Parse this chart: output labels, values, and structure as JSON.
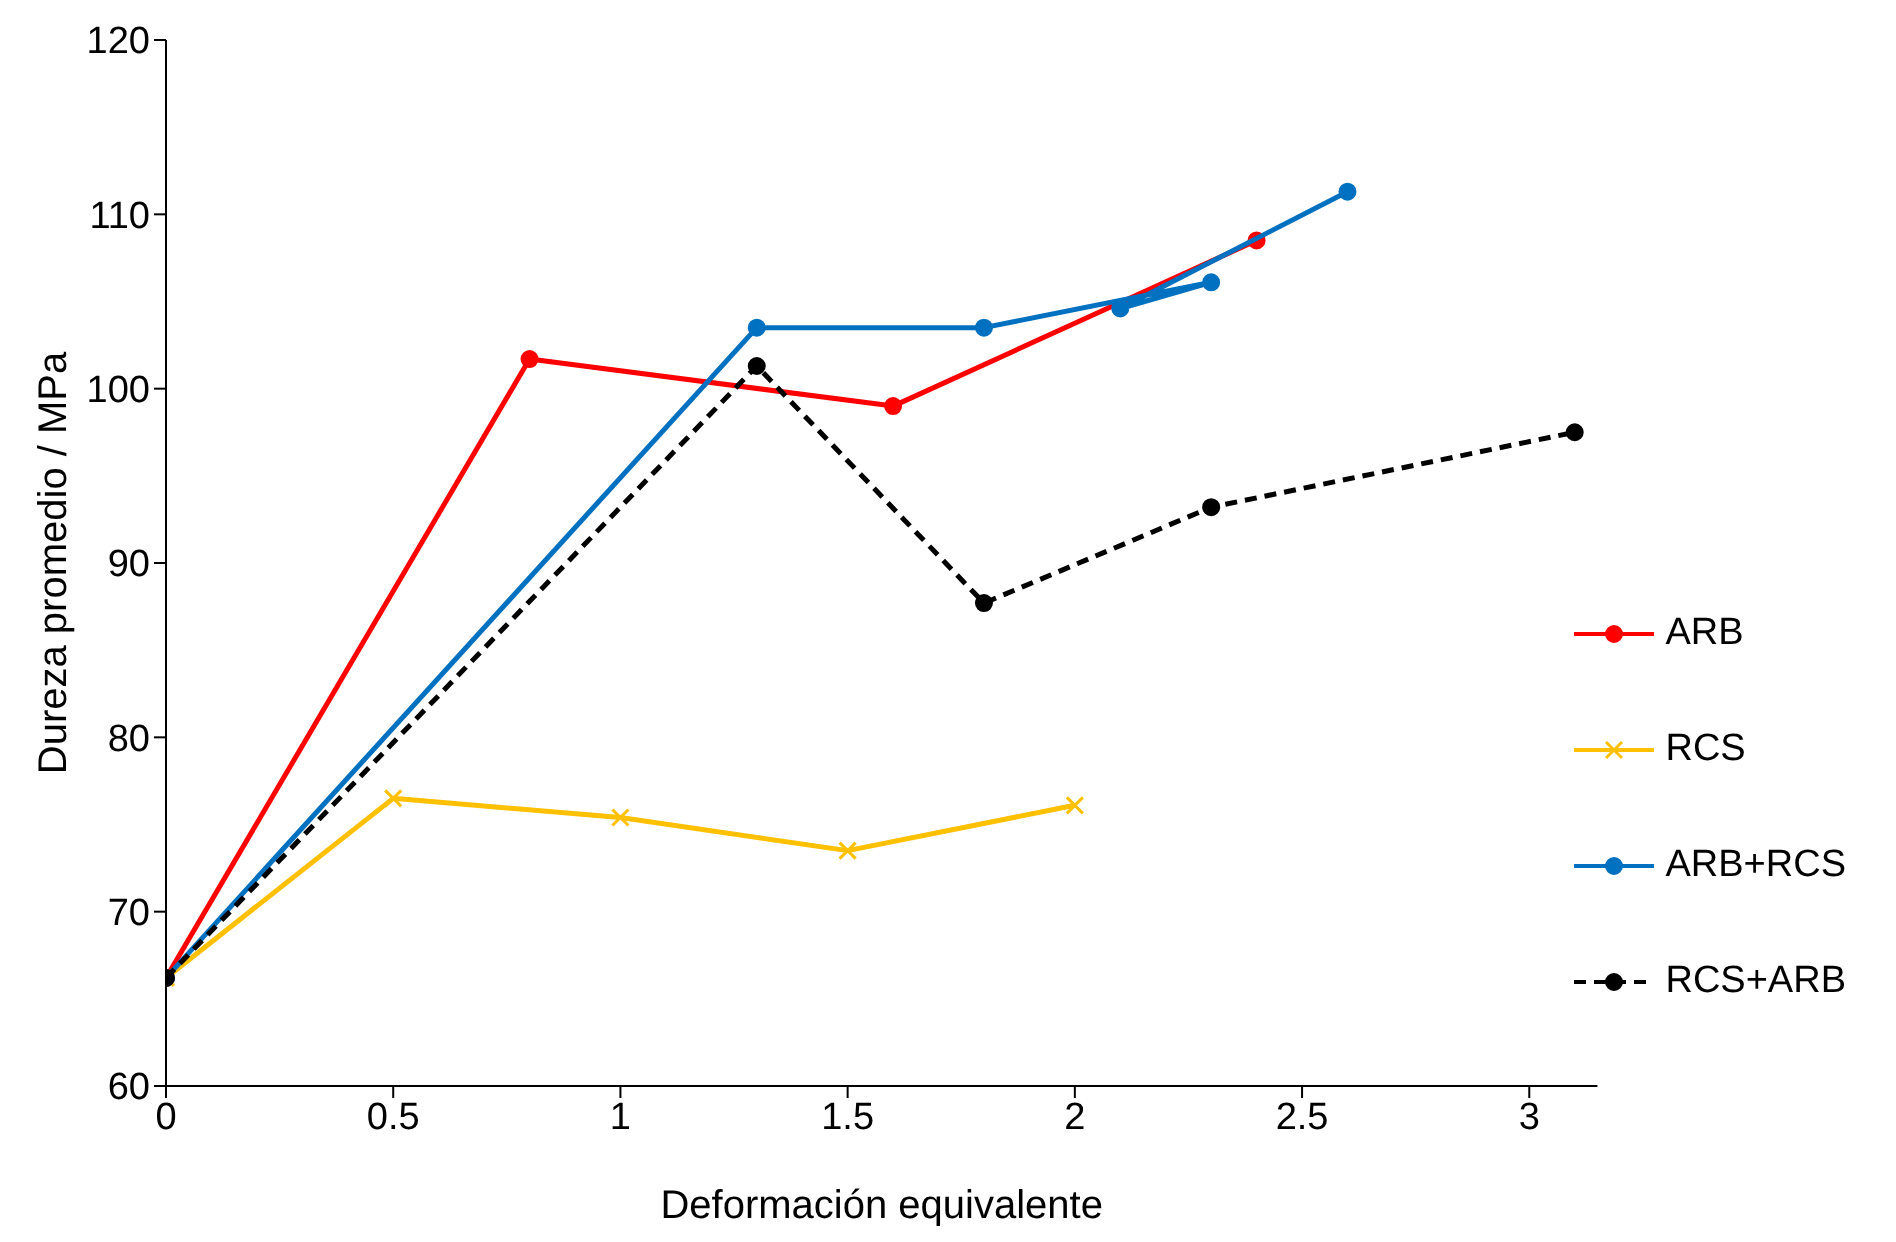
{
  "chart_data": {
    "type": "line",
    "xlabel": "Deformación equivalente",
    "ylabel": "Dureza promedio / MPa",
    "xlim": [
      0,
      3.15
    ],
    "xticks": [
      0,
      0.5,
      1,
      1.5,
      2,
      2.5,
      3
    ],
    "ylim": [
      60,
      120
    ],
    "yticks": [
      60,
      70,
      80,
      90,
      100,
      110,
      120
    ],
    "legend": "right",
    "series": [
      {
        "name": "ARB",
        "color": "#ff0000",
        "marker": "circle",
        "line_style": "solid",
        "x": [
          0,
          0.8,
          1.6,
          2.4
        ],
        "values": [
          66.2,
          101.7,
          99.0,
          108.5
        ]
      },
      {
        "name": "RCS",
        "color": "#ffc000",
        "marker": "cross",
        "line_style": "solid",
        "x": [
          0,
          0.5,
          1,
          1.5,
          2
        ],
        "values": [
          66.2,
          76.5,
          75.4,
          73.5,
          76.1
        ]
      },
      {
        "name": "ARB+RCS",
        "color": "#0070c0",
        "marker": "circle",
        "line_style": "solid",
        "x": [
          0,
          1.3,
          1.8,
          2.3,
          2.1,
          2.6
        ],
        "values": [
          66.2,
          103.5,
          103.5,
          106.1,
          104.6,
          111.3
        ]
      },
      {
        "name": "RCS+ARB",
        "color": "#000000",
        "marker": "circle",
        "line_style": "dashed",
        "x": [
          0,
          1.3,
          1.8,
          2.3,
          3.1
        ],
        "values": [
          66.2,
          101.3,
          87.7,
          93.2,
          97.5
        ]
      }
    ]
  }
}
